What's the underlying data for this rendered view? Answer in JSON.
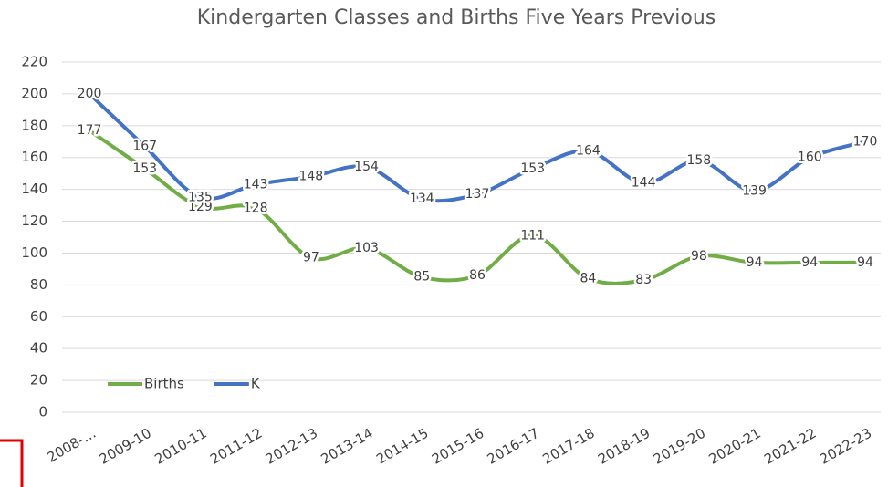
{
  "chart_data": {
    "type": "line",
    "title": "Kindergarten Classes and Births Five Years Previous",
    "categories": [
      "2008-…",
      "2009-10",
      "2010-11",
      "2011-12",
      "2012-13",
      "2013-14",
      "2014-15",
      "2015-16",
      "2016-17",
      "2017-18",
      "2018-19",
      "2019-20",
      "2020-21",
      "2021-22",
      "2022-23"
    ],
    "series": [
      {
        "name": "Births",
        "color": "#70ad47",
        "values": [
          177,
          153,
          129,
          128,
          97,
          103,
          85,
          86,
          111,
          84,
          83,
          98,
          94,
          94,
          94
        ]
      },
      {
        "name": "K",
        "color": "#4472c4",
        "values": [
          200,
          167,
          135,
          143,
          148,
          154,
          134,
          137,
          153,
          164,
          144,
          158,
          139,
          160,
          170
        ]
      }
    ],
    "ylim": [
      0,
      220
    ],
    "yticks": [
      0,
      20,
      40,
      60,
      80,
      100,
      120,
      140,
      160,
      180,
      200,
      220
    ],
    "grid": true,
    "smooth": true,
    "legend": "lower left"
  }
}
